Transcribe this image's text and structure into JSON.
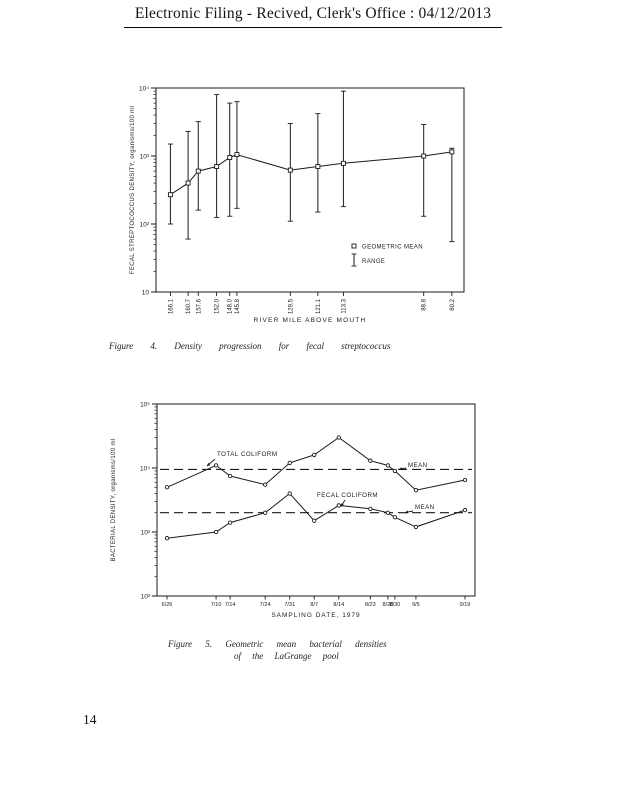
{
  "header": {
    "title": "Electronic Filing - Recived, Clerk's Office :  04/12/2013"
  },
  "page_number": "14",
  "figures": {
    "fig4_caption": "Figure 4. Density progression for fecal streptococcus",
    "fig5_caption_line1": "Figure 5. Geometric mean bacterial densities",
    "fig5_caption_line2": "of the LaGrange pool"
  },
  "chart_data": [
    {
      "type": "line",
      "figure_label": "Figure 4",
      "title": "Density progression for fecal streptococcus",
      "xlabel": "RIVER MILE ABOVE MOUTH",
      "ylabel": "FECAL STREPTOCOCCUS DENSITY, organisms/100 ml",
      "y_scale": "log",
      "ylim": [
        10,
        10000
      ],
      "y_tick_labels": [
        "10",
        "10²",
        "10³",
        "10⁴"
      ],
      "categories": [
        "166.1",
        "160.7",
        "157.6",
        "152.0",
        "148.0",
        "145.8",
        "129.5",
        "121.1",
        "113.3",
        "88.8",
        "80.2"
      ],
      "series": [
        {
          "name": "GEOMETRIC MEAN",
          "values": [
            270,
            400,
            600,
            700,
            950,
            1050,
            620,
            700,
            780,
            1000,
            1150
          ]
        }
      ],
      "ranges": [
        [
          100,
          1500
        ],
        [
          60,
          2300
        ],
        [
          160,
          3200
        ],
        [
          125,
          8000
        ],
        [
          130,
          6000
        ],
        [
          170,
          6300
        ],
        [
          110,
          3000
        ],
        [
          150,
          4200
        ],
        [
          180,
          9000
        ],
        [
          130,
          2900
        ],
        [
          55,
          1300
        ]
      ],
      "legend": [
        {
          "symbol": "square-marker",
          "label": "GEOMETRIC MEAN"
        },
        {
          "symbol": "range-bar",
          "label": "RANGE"
        }
      ],
      "legend_position": "inside-lower-right",
      "grid": false
    },
    {
      "type": "line",
      "figure_label": "Figure 5",
      "title": "Geometric mean bacterial densities of the LaGrange pool",
      "xlabel": "SAMPLING DATE, 1979",
      "ylabel": "BACTERIAL DENSITY, organisms/100 ml",
      "y_scale": "log",
      "ylim": [
        100,
        100000
      ],
      "y_tick_labels": [
        "10²",
        "10³",
        "10⁴",
        "10⁵"
      ],
      "categories": [
        "6/26",
        "7/10",
        "7/14",
        "7/24",
        "7/31",
        "8/7",
        "8/14",
        "8/23",
        "8/28",
        "8/30",
        "9/5",
        "9/19"
      ],
      "x_days": [
        0,
        14,
        18,
        28,
        35,
        42,
        49,
        58,
        63,
        65,
        71,
        85
      ],
      "series": [
        {
          "name": "TOTAL COLIFORM",
          "values": [
            5000,
            11000,
            7500,
            5500,
            12000,
            16000,
            30000,
            13000,
            11000,
            9000,
            4500,
            6500
          ],
          "mean": 9500
        },
        {
          "name": "FECAL COLIFORM",
          "values": [
            800,
            1000,
            1400,
            2000,
            4000,
            1500,
            2600,
            2300,
            2000,
            1700,
            1200,
            2200
          ],
          "mean": 2000
        }
      ],
      "annotations": [
        {
          "text": "TOTAL COLIFORM"
        },
        {
          "text": "FECAL COLIFORM"
        },
        {
          "text": "MEAN"
        },
        {
          "text": "MEAN"
        }
      ],
      "grid": false
    }
  ]
}
